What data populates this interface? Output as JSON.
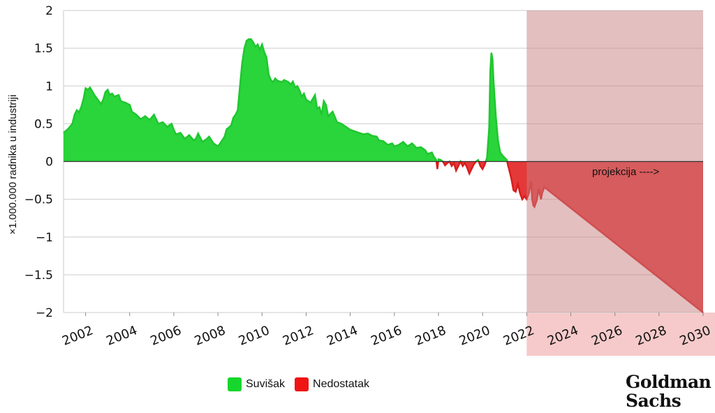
{
  "chart_data": {
    "type": "area",
    "title": "",
    "ylabel": "×1.000.000 radnika u industriji",
    "xlabel": "",
    "ylim": [
      -2,
      2
    ],
    "xlim": [
      2001,
      2030
    ],
    "y_ticks": [
      2,
      1.5,
      1,
      0.5,
      0,
      -0.5,
      -1,
      -1.5,
      -2
    ],
    "y_tick_labels": [
      "2",
      "1.5",
      "1",
      "0.5",
      "0",
      "−0.5",
      "−1",
      "−1.5",
      "−2"
    ],
    "x_ticks": [
      2002,
      2004,
      2006,
      2008,
      2010,
      2012,
      2014,
      2016,
      2018,
      2020,
      2022,
      2024,
      2026,
      2028,
      2030
    ],
    "x_tick_labels": [
      "2002",
      "2004",
      "2006",
      "2008",
      "2010",
      "2012",
      "2014",
      "2016",
      "2018",
      "2020",
      "2022",
      "2024",
      "2026",
      "2028",
      "2030"
    ],
    "grid": true,
    "legend_position": "bottom-center",
    "colors": {
      "surplus": "#2ad43b",
      "surplus_line": "#1fc72f",
      "shortage": "#e53838",
      "shortage_line": "#d91c1c",
      "projection_region": "#c77f82",
      "projection_band": "#f6caca"
    },
    "projection": {
      "start": 2022.0,
      "end": 2030.0,
      "label": "projekcija ---->"
    },
    "series": [
      {
        "name": "Suvišak / Nedostatak",
        "points": [
          [
            2001.0,
            0.38
          ],
          [
            2001.2,
            0.43
          ],
          [
            2001.4,
            0.5
          ],
          [
            2001.5,
            0.62
          ],
          [
            2001.6,
            0.68
          ],
          [
            2001.7,
            0.65
          ],
          [
            2001.8,
            0.72
          ],
          [
            2001.9,
            0.82
          ],
          [
            2002.0,
            0.97
          ],
          [
            2002.1,
            0.95
          ],
          [
            2002.2,
            0.98
          ],
          [
            2002.3,
            0.93
          ],
          [
            2002.4,
            0.88
          ],
          [
            2002.5,
            0.84
          ],
          [
            2002.6,
            0.8
          ],
          [
            2002.7,
            0.76
          ],
          [
            2002.8,
            0.82
          ],
          [
            2002.9,
            0.92
          ],
          [
            2003.0,
            0.95
          ],
          [
            2003.1,
            0.88
          ],
          [
            2003.2,
            0.9
          ],
          [
            2003.3,
            0.86
          ],
          [
            2003.5,
            0.88
          ],
          [
            2003.6,
            0.8
          ],
          [
            2003.8,
            0.78
          ],
          [
            2004.0,
            0.75
          ],
          [
            2004.1,
            0.66
          ],
          [
            2004.3,
            0.62
          ],
          [
            2004.5,
            0.56
          ],
          [
            2004.7,
            0.6
          ],
          [
            2004.9,
            0.55
          ],
          [
            2005.1,
            0.62
          ],
          [
            2005.3,
            0.5
          ],
          [
            2005.5,
            0.52
          ],
          [
            2005.7,
            0.46
          ],
          [
            2005.9,
            0.5
          ],
          [
            2006.0,
            0.42
          ],
          [
            2006.1,
            0.36
          ],
          [
            2006.3,
            0.38
          ],
          [
            2006.5,
            0.3
          ],
          [
            2006.7,
            0.35
          ],
          [
            2006.9,
            0.28
          ],
          [
            2007.0,
            0.3
          ],
          [
            2007.1,
            0.37
          ],
          [
            2007.3,
            0.26
          ],
          [
            2007.5,
            0.3
          ],
          [
            2007.6,
            0.33
          ],
          [
            2007.8,
            0.24
          ],
          [
            2008.0,
            0.2
          ],
          [
            2008.1,
            0.24
          ],
          [
            2008.3,
            0.33
          ],
          [
            2008.4,
            0.43
          ],
          [
            2008.5,
            0.45
          ],
          [
            2008.6,
            0.48
          ],
          [
            2008.7,
            0.58
          ],
          [
            2008.8,
            0.62
          ],
          [
            2008.9,
            0.68
          ],
          [
            2009.0,
            1.0
          ],
          [
            2009.1,
            1.3
          ],
          [
            2009.2,
            1.5
          ],
          [
            2009.3,
            1.6
          ],
          [
            2009.4,
            1.62
          ],
          [
            2009.5,
            1.62
          ],
          [
            2009.6,
            1.58
          ],
          [
            2009.7,
            1.52
          ],
          [
            2009.8,
            1.55
          ],
          [
            2009.9,
            1.48
          ],
          [
            2010.0,
            1.55
          ],
          [
            2010.1,
            1.45
          ],
          [
            2010.2,
            1.38
          ],
          [
            2010.3,
            1.15
          ],
          [
            2010.4,
            1.08
          ],
          [
            2010.5,
            1.05
          ],
          [
            2010.6,
            1.1
          ],
          [
            2010.7,
            1.07
          ],
          [
            2010.9,
            1.05
          ],
          [
            2011.0,
            1.08
          ],
          [
            2011.2,
            1.05
          ],
          [
            2011.3,
            1.02
          ],
          [
            2011.4,
            1.06
          ],
          [
            2011.5,
            0.98
          ],
          [
            2011.6,
            1.0
          ],
          [
            2011.7,
            0.94
          ],
          [
            2011.8,
            0.86
          ],
          [
            2011.9,
            0.9
          ],
          [
            2012.0,
            0.82
          ],
          [
            2012.2,
            0.78
          ],
          [
            2012.4,
            0.88
          ],
          [
            2012.5,
            0.7
          ],
          [
            2012.6,
            0.72
          ],
          [
            2012.7,
            0.62
          ],
          [
            2012.8,
            0.8
          ],
          [
            2012.9,
            0.75
          ],
          [
            2013.0,
            0.6
          ],
          [
            2013.2,
            0.66
          ],
          [
            2013.4,
            0.52
          ],
          [
            2013.6,
            0.5
          ],
          [
            2013.7,
            0.48
          ],
          [
            2013.9,
            0.44
          ],
          [
            2014.0,
            0.42
          ],
          [
            2014.2,
            0.4
          ],
          [
            2014.4,
            0.38
          ],
          [
            2014.6,
            0.36
          ],
          [
            2014.8,
            0.37
          ],
          [
            2015.0,
            0.34
          ],
          [
            2015.2,
            0.33
          ],
          [
            2015.3,
            0.28
          ],
          [
            2015.5,
            0.27
          ],
          [
            2015.7,
            0.22
          ],
          [
            2015.9,
            0.24
          ],
          [
            2016.0,
            0.2
          ],
          [
            2016.2,
            0.22
          ],
          [
            2016.4,
            0.26
          ],
          [
            2016.6,
            0.2
          ],
          [
            2016.8,
            0.24
          ],
          [
            2017.0,
            0.18
          ],
          [
            2017.2,
            0.19
          ],
          [
            2017.4,
            0.15
          ],
          [
            2017.5,
            0.1
          ],
          [
            2017.7,
            0.12
          ],
          [
            2017.8,
            0.06
          ],
          [
            2017.9,
            0.02
          ],
          [
            2017.95,
            -0.1
          ],
          [
            2018.0,
            0.03
          ],
          [
            2018.1,
            0.02
          ],
          [
            2018.2,
            0.0
          ],
          [
            2018.3,
            -0.05
          ],
          [
            2018.4,
            -0.02
          ],
          [
            2018.5,
            0.0
          ],
          [
            2018.6,
            -0.06
          ],
          [
            2018.7,
            -0.02
          ],
          [
            2018.8,
            -0.12
          ],
          [
            2018.9,
            -0.06
          ],
          [
            2019.0,
            0.0
          ],
          [
            2019.1,
            -0.06
          ],
          [
            2019.2,
            -0.02
          ],
          [
            2019.3,
            -0.08
          ],
          [
            2019.4,
            -0.16
          ],
          [
            2019.5,
            -0.1
          ],
          [
            2019.6,
            -0.04
          ],
          [
            2019.7,
            0.0
          ],
          [
            2019.8,
            0.02
          ],
          [
            2019.9,
            -0.06
          ],
          [
            2020.0,
            -0.1
          ],
          [
            2020.1,
            -0.04
          ],
          [
            2020.2,
            0.05
          ],
          [
            2020.3,
            0.45
          ],
          [
            2020.35,
            1.2
          ],
          [
            2020.4,
            1.44
          ],
          [
            2020.45,
            1.35
          ],
          [
            2020.5,
            1.05
          ],
          [
            2020.6,
            0.6
          ],
          [
            2020.7,
            0.28
          ],
          [
            2020.8,
            0.12
          ],
          [
            2020.9,
            0.08
          ],
          [
            2021.0,
            0.05
          ],
          [
            2021.1,
            0.02
          ],
          [
            2021.15,
            -0.05
          ],
          [
            2021.2,
            -0.1
          ],
          [
            2021.3,
            -0.22
          ],
          [
            2021.4,
            -0.38
          ],
          [
            2021.5,
            -0.4
          ],
          [
            2021.6,
            -0.3
          ],
          [
            2021.7,
            -0.42
          ],
          [
            2021.8,
            -0.5
          ],
          [
            2021.9,
            -0.46
          ],
          [
            2022.0,
            -0.5
          ],
          [
            2022.1,
            -0.42
          ],
          [
            2022.2,
            -0.26
          ],
          [
            2022.25,
            -0.5
          ],
          [
            2022.3,
            -0.58
          ],
          [
            2022.35,
            -0.6
          ],
          [
            2022.45,
            -0.52
          ],
          [
            2022.55,
            -0.36
          ],
          [
            2022.6,
            -0.44
          ],
          [
            2022.65,
            -0.5
          ],
          [
            2022.7,
            -0.42
          ],
          [
            2022.8,
            -0.34
          ],
          [
            2030.0,
            -2.0
          ]
        ]
      }
    ],
    "legend": [
      {
        "label": "Suvišak",
        "color": "#16d62c"
      },
      {
        "label": "Nedostatak",
        "color": "#f01414"
      }
    ]
  },
  "branding": {
    "logo_line1": "Goldman",
    "logo_line2": "Sachs"
  }
}
